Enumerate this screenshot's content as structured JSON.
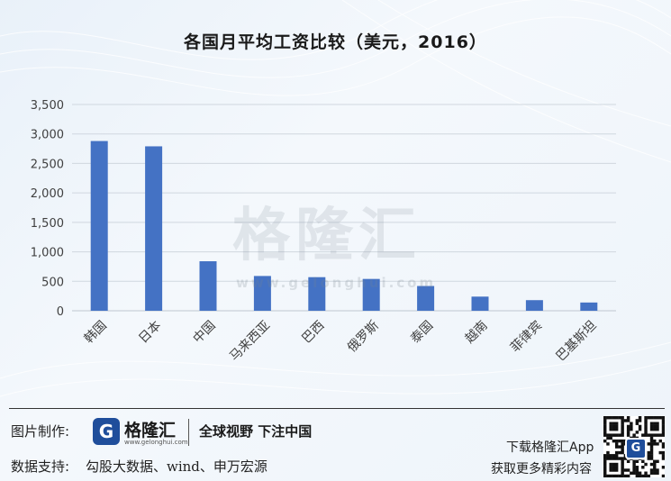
{
  "chart_data": {
    "type": "bar",
    "title": "各国月平均工资比较（美元，2016）",
    "categories": [
      "韩国",
      "日本",
      "中国",
      "马来西亚",
      "巴西",
      "俄罗斯",
      "泰国",
      "越南",
      "菲律宾",
      "巴基斯坦"
    ],
    "values": [
      2880,
      2790,
      840,
      590,
      570,
      540,
      420,
      240,
      180,
      140
    ],
    "ylim": [
      0,
      3500
    ],
    "yticks": [
      0,
      500,
      1000,
      1500,
      2000,
      2500,
      3000,
      3500
    ],
    "ytick_labels": [
      "0",
      "500",
      "1,000",
      "1,500",
      "2,000",
      "2,500",
      "3,000",
      "3,500"
    ],
    "xlabel": "",
    "ylabel": "",
    "grid": true,
    "legend": "none",
    "bar_color": "#4472c4"
  },
  "watermark": {
    "name": "格隆汇",
    "url": "www.gelonghui.com"
  },
  "footer": {
    "credit_label": "图片制作:",
    "logo_letter": "G",
    "logo_name": "格隆汇",
    "logo_url": "www.gelonghui.com",
    "slogan": "全球视野 下注中国",
    "source_label": "数据支持:",
    "source_text": "勾股大数据、wind、申万宏源",
    "download_line1": "下载格隆汇App",
    "download_line2": "获取更多精彩内容",
    "qr_letter": "G"
  },
  "colors": {
    "brand": "#1f4e9b",
    "grid": "#d0d7df"
  }
}
